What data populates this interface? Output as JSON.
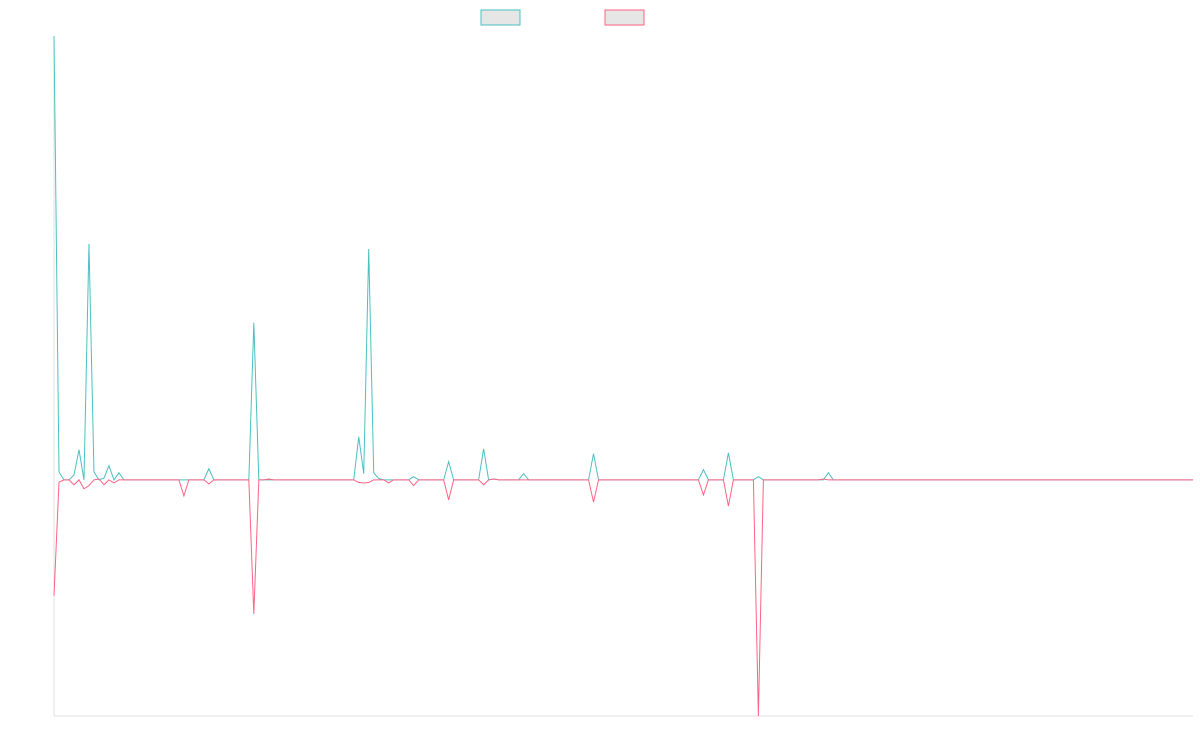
{
  "chart_data": {
    "type": "line",
    "title": "",
    "xlabel": "",
    "ylabel": "",
    "grid": false,
    "legend_placement": "top",
    "point_count": 229,
    "ylim": [
      -53.2,
      100
    ],
    "series": [
      {
        "name": "",
        "color": "#4bc0c0",
        "legend_fill": "#e6e6e6",
        "nonzero_values": {
          "0": 100,
          "1": 1.8,
          "4": 1.1,
          "5": 6.8,
          "7": 53.2,
          "8": 1.8,
          "10": 0.4,
          "11": 3.2,
          "13": 1.6,
          "31": 2.5,
          "40": 35.4,
          "61": 9.7,
          "62": 1.4,
          "63": 52,
          "64": 1.6,
          "65": 0.3,
          "72": 0.7,
          "79": 4.1,
          "86": 7,
          "88": 0.2,
          "94": 1.4,
          "108": 5.9,
          "130": 2.3,
          "135": 6.1,
          "141": 0.7,
          "155": 1.6
        }
      },
      {
        "name": "",
        "color": "#ff6384",
        "legend_fill": "#e6e6e6",
        "nonzero_values": {
          "0": -26.1,
          "1": -0.5,
          "4": -1.1,
          "6": -2,
          "7": -1.3,
          "9": 0.2,
          "10": -1.1,
          "12": -0.7,
          "26": -3.6,
          "31": -0.9,
          "40": -30.2,
          "43": 0.2,
          "61": -0.6,
          "62": -0.7,
          "63": -0.6,
          "67": -0.7,
          "72": -1.3,
          "79": -4.5,
          "86": -1.1,
          "88": 0.2,
          "108": -5,
          "130": -3.4,
          "135": -5.9,
          "141": -53.2,
          "154": 0.2
        }
      }
    ]
  }
}
